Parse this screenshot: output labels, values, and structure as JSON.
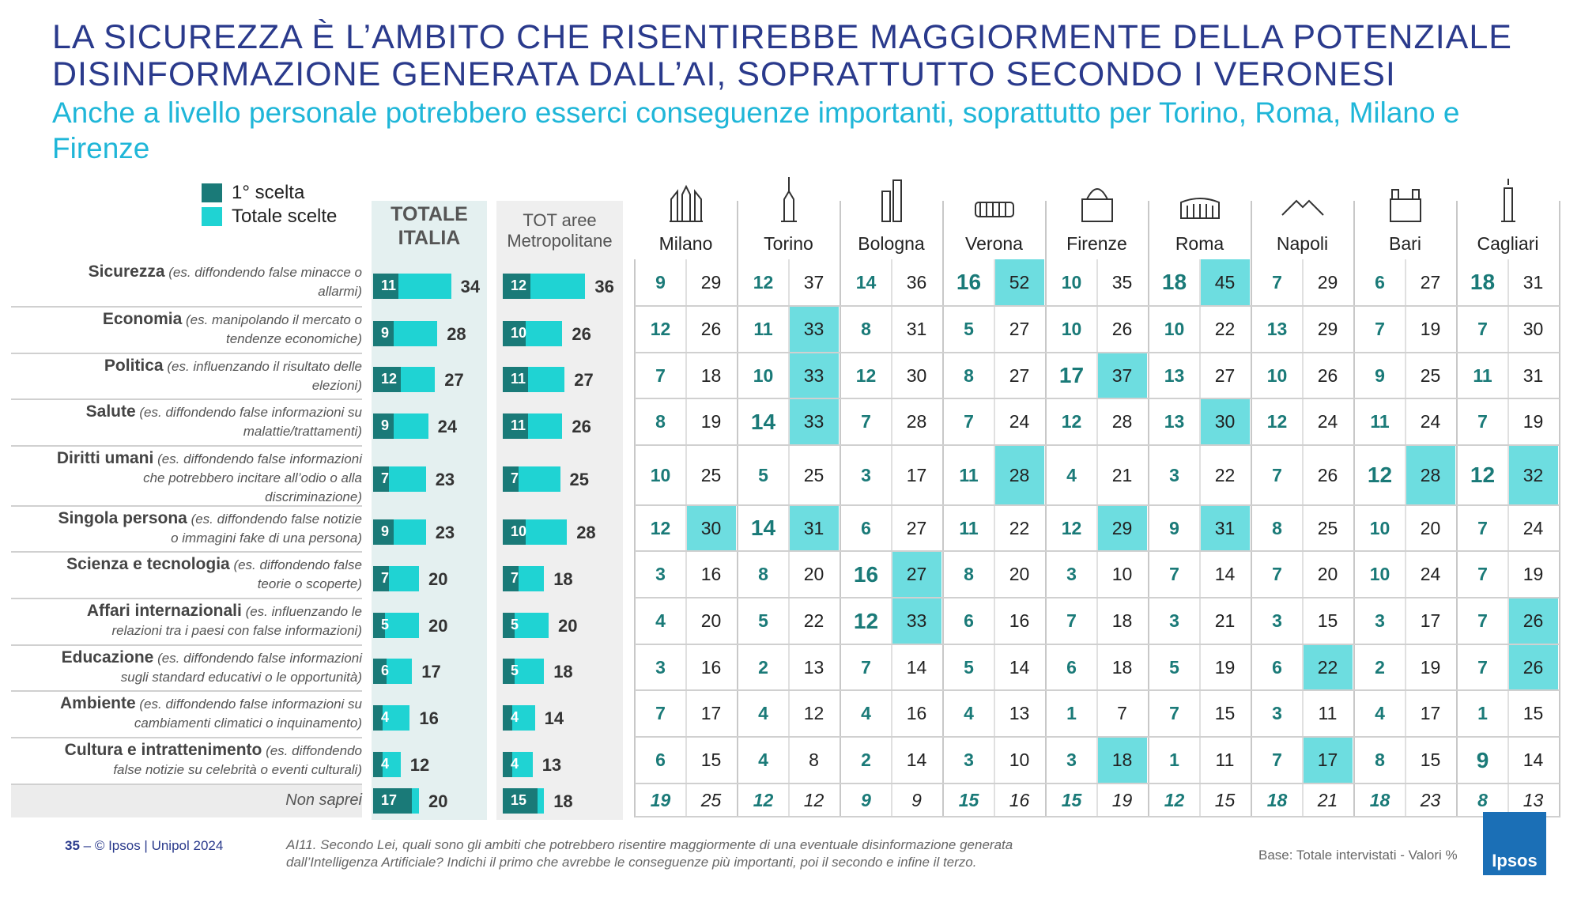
{
  "title_line1": "LA SICUREZZA È L’AMBITO CHE RISENTIREBBE MAGGIORMENTE DELLA POTENZIALE",
  "title_line2": "DISINFORMAZIONE GENERATA DALL’AI, SOPRATTUTTO SECONDO I VERONESI",
  "subtitle": "Anche a livello personale potrebbero esserci conseguenze importanti, soprattutto per Torino, Roma, Milano e Firenze",
  "legend": {
    "first": "1° scelta",
    "total": "Totale scelte"
  },
  "colors": {
    "first": "#1a7a78",
    "total": "#1fd3d3",
    "highlight": "#6ddde0",
    "title": "#2a3a8c",
    "subtitle": "#1fb6d8"
  },
  "headers": {
    "italia_1": "TOTALE",
    "italia_2": "ITALIA",
    "metro_1": "TOT aree",
    "metro_2": "Metropolitane"
  },
  "cities": [
    "Milano",
    "Torino",
    "Bologna",
    "Verona",
    "Firenze",
    "Roma",
    "Napoli",
    "Bari",
    "Cagliari"
  ],
  "city_icons": [
    "milano-duomo-icon",
    "torino-mole-icon",
    "bologna-towers-icon",
    "verona-arena-icon",
    "firenze-duomo-icon",
    "roma-colosseum-icon",
    "napoli-vesuvio-icon",
    "bari-basilica-icon",
    "cagliari-tower-icon"
  ],
  "rows": [
    {
      "label": "Sicurezza",
      "desc1": " (es. diffondendo false minacce o",
      "desc2": "allarmi)",
      "desc3": ""
    },
    {
      "label": "Economia",
      "desc1": " (es. manipolando il mercato o",
      "desc2": "tendenze economiche)",
      "desc3": ""
    },
    {
      "label": "Politica",
      "desc1": " (es. influenzando il risultato delle",
      "desc2": "elezioni)",
      "desc3": ""
    },
    {
      "label": "Salute",
      "desc1": " (es. diffondendo false informazioni su",
      "desc2": "malattie/trattamenti)",
      "desc3": ""
    },
    {
      "label": "Diritti umani",
      "desc1": " (es. diffondendo false informazioni",
      "desc2": "che potrebbero incitare all’odio o alla",
      "desc3": "discriminazione)"
    },
    {
      "label": "Singola persona",
      "desc1": " (es. diffondendo false notizie",
      "desc2": "o immagini fake di una persona)",
      "desc3": ""
    },
    {
      "label": "Scienza e tecnologia",
      "desc1": " (es. diffondendo false",
      "desc2": "teorie o scoperte)",
      "desc3": ""
    },
    {
      "label": "Affari internazionali",
      "desc1": " (es. influenzando le",
      "desc2": "relazioni tra i paesi con false informazioni)",
      "desc3": ""
    },
    {
      "label": "Educazione",
      "desc1": " (es. diffondendo false informazioni",
      "desc2": "sugli standard educativi o le opportunità)",
      "desc3": ""
    },
    {
      "label": "Ambiente",
      "desc1": " (es. diffondendo false informazioni su",
      "desc2": "cambiamenti climatici o inquinamento)",
      "desc3": ""
    },
    {
      "label": "Cultura e intrattenimento",
      "desc1": " (es. diffondendo",
      "desc2": "false notizie su celebrità o eventi culturali)",
      "desc3": ""
    },
    {
      "label": "",
      "desc1": "",
      "desc2": "Non saprei",
      "desc3": ""
    }
  ],
  "chart_data": {
    "type": "bar",
    "categories": [
      "Sicurezza",
      "Economia",
      "Politica",
      "Salute",
      "Diritti umani",
      "Singola persona",
      "Scienza e tecnologia",
      "Affari internazionali",
      "Educazione",
      "Ambiente",
      "Cultura e intrattenimento",
      "Non saprei"
    ],
    "series": [
      {
        "name": "1° scelta",
        "group": "TOTALE ITALIA",
        "values": [
          11,
          9,
          12,
          9,
          7,
          9,
          7,
          5,
          6,
          4,
          4,
          17
        ]
      },
      {
        "name": "Totale scelte",
        "group": "TOTALE ITALIA",
        "values": [
          34,
          28,
          27,
          24,
          23,
          23,
          20,
          20,
          17,
          16,
          12,
          20
        ]
      },
      {
        "name": "1° scelta",
        "group": "TOT aree Metropolitane",
        "values": [
          12,
          10,
          11,
          11,
          7,
          10,
          7,
          5,
          5,
          4,
          4,
          15
        ]
      },
      {
        "name": "Totale scelte",
        "group": "TOT aree Metropolitane",
        "values": [
          36,
          26,
          27,
          26,
          25,
          28,
          18,
          20,
          18,
          14,
          13,
          18
        ]
      }
    ],
    "xlim": [
      0,
      40
    ],
    "table": {
      "columns": [
        "Milano",
        "Torino",
        "Bologna",
        "Verona",
        "Firenze",
        "Roma",
        "Napoli",
        "Bari",
        "Cagliari"
      ],
      "first": [
        [
          9,
          12,
          14,
          16,
          10,
          18,
          7,
          6,
          18
        ],
        [
          12,
          11,
          8,
          5,
          10,
          10,
          13,
          7,
          7
        ],
        [
          7,
          10,
          12,
          8,
          17,
          13,
          10,
          9,
          11
        ],
        [
          8,
          14,
          7,
          7,
          12,
          13,
          12,
          11,
          7
        ],
        [
          10,
          5,
          3,
          11,
          4,
          3,
          7,
          12,
          12
        ],
        [
          12,
          14,
          6,
          11,
          12,
          9,
          8,
          10,
          7
        ],
        [
          3,
          8,
          16,
          8,
          3,
          7,
          7,
          10,
          7
        ],
        [
          4,
          5,
          12,
          6,
          7,
          3,
          3,
          3,
          7
        ],
        [
          3,
          2,
          7,
          5,
          6,
          5,
          6,
          2,
          7
        ],
        [
          7,
          4,
          4,
          4,
          1,
          7,
          3,
          4,
          1
        ],
        [
          6,
          4,
          2,
          3,
          3,
          1,
          7,
          8,
          9
        ],
        [
          19,
          12,
          9,
          15,
          15,
          12,
          18,
          18,
          8
        ]
      ],
      "total": [
        [
          29,
          37,
          36,
          52,
          35,
          45,
          29,
          27,
          31
        ],
        [
          26,
          33,
          31,
          27,
          26,
          22,
          29,
          19,
          30
        ],
        [
          18,
          33,
          30,
          27,
          37,
          27,
          26,
          25,
          31
        ],
        [
          19,
          33,
          28,
          24,
          28,
          30,
          24,
          24,
          19
        ],
        [
          25,
          25,
          17,
          28,
          21,
          22,
          26,
          28,
          32
        ],
        [
          30,
          31,
          27,
          22,
          29,
          31,
          25,
          20,
          24
        ],
        [
          16,
          20,
          27,
          20,
          10,
          14,
          20,
          24,
          19
        ],
        [
          20,
          22,
          33,
          16,
          18,
          21,
          15,
          17,
          26
        ],
        [
          16,
          13,
          14,
          14,
          18,
          19,
          22,
          19,
          26
        ],
        [
          17,
          12,
          16,
          13,
          7,
          15,
          11,
          17,
          15
        ],
        [
          15,
          8,
          14,
          10,
          18,
          11,
          17,
          15,
          14
        ],
        [
          25,
          12,
          9,
          16,
          19,
          15,
          21,
          23,
          13
        ]
      ],
      "first_highlight": [
        [
          0,
          0,
          0,
          1,
          0,
          1,
          0,
          0,
          1
        ],
        [
          0,
          0,
          0,
          0,
          0,
          0,
          0,
          0,
          0
        ],
        [
          0,
          0,
          0,
          0,
          1,
          0,
          0,
          0,
          0
        ],
        [
          0,
          1,
          0,
          0,
          0,
          0,
          0,
          0,
          0
        ],
        [
          0,
          0,
          0,
          0,
          0,
          0,
          0,
          1,
          1
        ],
        [
          0,
          1,
          0,
          0,
          0,
          0,
          0,
          0,
          0
        ],
        [
          0,
          0,
          1,
          0,
          0,
          0,
          0,
          0,
          0
        ],
        [
          0,
          0,
          1,
          0,
          0,
          0,
          0,
          0,
          0
        ],
        [
          0,
          0,
          0,
          0,
          0,
          0,
          0,
          0,
          0
        ],
        [
          0,
          0,
          0,
          0,
          0,
          0,
          0,
          0,
          0
        ],
        [
          0,
          0,
          0,
          0,
          0,
          0,
          0,
          0,
          1
        ],
        [
          0,
          0,
          0,
          0,
          0,
          0,
          0,
          0,
          0
        ]
      ],
      "total_highlight": [
        [
          0,
          0,
          0,
          1,
          0,
          1,
          0,
          0,
          0
        ],
        [
          0,
          1,
          0,
          0,
          0,
          0,
          0,
          0,
          0
        ],
        [
          0,
          1,
          0,
          0,
          1,
          0,
          0,
          0,
          0
        ],
        [
          0,
          1,
          0,
          0,
          0,
          1,
          0,
          0,
          0
        ],
        [
          0,
          0,
          0,
          1,
          0,
          0,
          0,
          1,
          1
        ],
        [
          1,
          1,
          0,
          0,
          1,
          1,
          0,
          0,
          0
        ],
        [
          0,
          0,
          1,
          0,
          0,
          0,
          0,
          0,
          0
        ],
        [
          0,
          0,
          1,
          0,
          0,
          0,
          0,
          0,
          1
        ],
        [
          0,
          0,
          0,
          0,
          0,
          0,
          1,
          0,
          1
        ],
        [
          0,
          0,
          0,
          0,
          0,
          0,
          0,
          0,
          0
        ],
        [
          0,
          0,
          0,
          0,
          1,
          0,
          1,
          0,
          0
        ],
        [
          0,
          0,
          0,
          0,
          0,
          0,
          0,
          0,
          0
        ]
      ]
    }
  },
  "footer": {
    "page": "35",
    "copyright": " – © Ipsos | Unipol  2024",
    "question1": "AI11. Secondo Lei, quali sono gli ambiti che potrebbero risentire maggiormente di una eventuale disinformazione generata",
    "question2": "dall’Intelligenza Artificiale? Indichi il primo che avrebbe le conseguenze più importanti, poi il secondo e infine il terzo.",
    "base": "Base: Totale intervistati  - Valori %",
    "logo": "Ipsos"
  }
}
